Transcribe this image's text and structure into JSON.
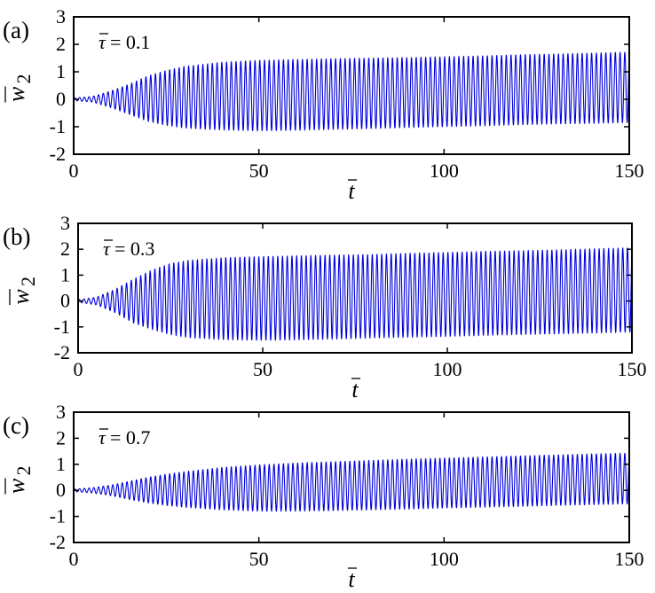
{
  "colors": {
    "line": "#0000dd",
    "frame": "#000000"
  },
  "chart_data": [
    {
      "type": "line",
      "panel_label": "(a)",
      "annotation": {
        "symbol": "τ",
        "text": " = 0.1"
      },
      "xlabel": "t",
      "ylabel": {
        "symbol": "w",
        "subscript": "2"
      },
      "xlim": [
        0,
        150
      ],
      "ylim": [
        -2,
        3
      ],
      "xticks": [
        0,
        50,
        100,
        150
      ],
      "yticks": [
        3,
        2,
        1,
        0,
        -1,
        -2
      ],
      "grid": false,
      "series": [
        {
          "x": [
            0,
            5,
            10,
            15,
            20,
            25,
            30,
            40,
            50,
            60,
            70,
            80,
            90,
            100,
            110,
            120,
            130,
            140,
            150
          ],
          "upper_envelope": [
            0.05,
            0.1,
            0.3,
            0.55,
            0.85,
            1.05,
            1.2,
            1.35,
            1.42,
            1.45,
            1.48,
            1.5,
            1.52,
            1.55,
            1.58,
            1.62,
            1.65,
            1.68,
            1.72
          ],
          "lower_envelope": [
            -0.05,
            -0.1,
            -0.3,
            -0.55,
            -0.8,
            -0.95,
            -1.05,
            -1.12,
            -1.15,
            -1.13,
            -1.1,
            -1.07,
            -1.03,
            -1.0,
            -0.97,
            -0.93,
            -0.9,
            -0.88,
            -0.85
          ]
        }
      ]
    },
    {
      "type": "line",
      "panel_label": "(b)",
      "annotation": {
        "symbol": "τ",
        "text": " = 0.3"
      },
      "xlabel": "t",
      "ylabel": {
        "symbol": "w",
        "subscript": "2"
      },
      "xlim": [
        0,
        150
      ],
      "ylim": [
        -2,
        3
      ],
      "xticks": [
        0,
        50,
        100,
        150
      ],
      "yticks": [
        3,
        2,
        1,
        0,
        -1,
        -2
      ],
      "grid": false,
      "series": [
        {
          "x": [
            0,
            5,
            10,
            15,
            20,
            25,
            30,
            40,
            50,
            60,
            70,
            80,
            90,
            100,
            110,
            120,
            130,
            140,
            150
          ],
          "upper_envelope": [
            0.05,
            0.15,
            0.45,
            0.85,
            1.2,
            1.45,
            1.58,
            1.68,
            1.72,
            1.75,
            1.78,
            1.8,
            1.85,
            1.88,
            1.92,
            1.95,
            1.98,
            2.02,
            2.06
          ],
          "lower_envelope": [
            -0.05,
            -0.15,
            -0.45,
            -0.85,
            -1.1,
            -1.3,
            -1.42,
            -1.5,
            -1.52,
            -1.5,
            -1.47,
            -1.43,
            -1.4,
            -1.37,
            -1.33,
            -1.3,
            -1.27,
            -1.24,
            -1.2
          ]
        }
      ]
    },
    {
      "type": "line",
      "panel_label": "(c)",
      "annotation": {
        "symbol": "τ",
        "text": " = 0.7"
      },
      "xlabel": "t",
      "ylabel": {
        "symbol": "w",
        "subscript": "2"
      },
      "xlim": [
        0,
        150
      ],
      "ylim": [
        -2,
        3
      ],
      "xticks": [
        0,
        50,
        100,
        150
      ],
      "yticks": [
        3,
        2,
        1,
        0,
        -1,
        -2
      ],
      "grid": false,
      "series": [
        {
          "x": [
            0,
            5,
            10,
            15,
            20,
            25,
            30,
            40,
            50,
            60,
            70,
            80,
            90,
            100,
            110,
            120,
            130,
            140,
            150
          ],
          "upper_envelope": [
            0.05,
            0.1,
            0.2,
            0.35,
            0.5,
            0.62,
            0.72,
            0.88,
            0.98,
            1.05,
            1.1,
            1.15,
            1.2,
            1.24,
            1.28,
            1.32,
            1.36,
            1.4,
            1.43
          ],
          "lower_envelope": [
            -0.05,
            -0.1,
            -0.2,
            -0.35,
            -0.48,
            -0.58,
            -0.65,
            -0.75,
            -0.8,
            -0.8,
            -0.78,
            -0.75,
            -0.72,
            -0.68,
            -0.65,
            -0.62,
            -0.58,
            -0.55,
            -0.52
          ]
        }
      ]
    }
  ]
}
